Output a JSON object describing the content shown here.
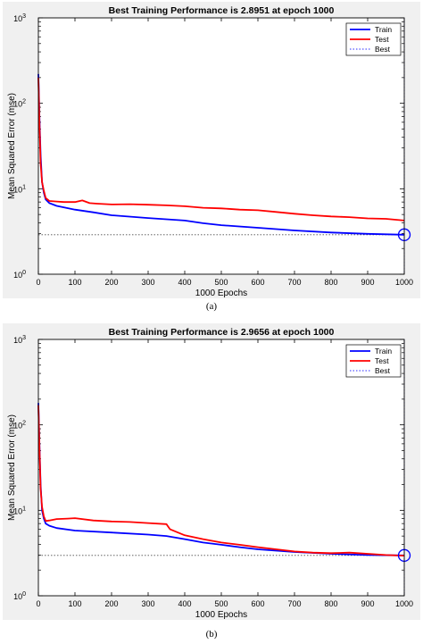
{
  "chart_data": [
    {
      "type": "line",
      "title": "Best Training Performance is 2.8951 at epoch 1000",
      "xlabel": "1000 Epochs",
      "ylabel": "Mean Squared Error  (mse)",
      "xlim": [
        0,
        1000
      ],
      "ylim": [
        1,
        1000
      ],
      "yscale": "log",
      "x_ticks": [
        "0",
        "100",
        "200",
        "300",
        "400",
        "500",
        "600",
        "700",
        "800",
        "900",
        "1000"
      ],
      "y_ticks": [
        {
          "base": "10",
          "exp": "0"
        },
        {
          "base": "10",
          "exp": "1"
        },
        {
          "base": "10",
          "exp": "2"
        },
        {
          "base": "10",
          "exp": "3"
        }
      ],
      "legend": [
        "Train",
        "Test",
        "Best"
      ],
      "legend_position": "top-right",
      "best": {
        "epoch": 1000,
        "value": 2.8951
      },
      "series": [
        {
          "name": "Train",
          "color": "#0000ff",
          "points": [
            [
              0,
              220
            ],
            [
              3,
              70
            ],
            [
              6,
              25
            ],
            [
              10,
              12
            ],
            [
              15,
              9
            ],
            [
              20,
              7.5
            ],
            [
              30,
              6.8
            ],
            [
              50,
              6.3
            ],
            [
              100,
              5.7
            ],
            [
              150,
              5.3
            ],
            [
              200,
              4.9
            ],
            [
              300,
              4.55
            ],
            [
              400,
              4.25
            ],
            [
              450,
              3.95
            ],
            [
              500,
              3.75
            ],
            [
              600,
              3.5
            ],
            [
              700,
              3.25
            ],
            [
              800,
              3.08
            ],
            [
              900,
              2.97
            ],
            [
              1000,
              2.8951
            ]
          ]
        },
        {
          "name": "Test",
          "color": "#ff0000",
          "points": [
            [
              0,
              200
            ],
            [
              3,
              60
            ],
            [
              6,
              20
            ],
            [
              10,
              12
            ],
            [
              15,
              9.5
            ],
            [
              20,
              7.8
            ],
            [
              30,
              7.2
            ],
            [
              50,
              7.1
            ],
            [
              70,
              7.0
            ],
            [
              100,
              7.0
            ],
            [
              120,
              7.3
            ],
            [
              140,
              6.8
            ],
            [
              160,
              6.7
            ],
            [
              200,
              6.55
            ],
            [
              250,
              6.6
            ],
            [
              300,
              6.5
            ],
            [
              350,
              6.4
            ],
            [
              400,
              6.25
            ],
            [
              450,
              6.0
            ],
            [
              500,
              5.9
            ],
            [
              550,
              5.7
            ],
            [
              600,
              5.6
            ],
            [
              650,
              5.35
            ],
            [
              700,
              5.1
            ],
            [
              750,
              4.9
            ],
            [
              800,
              4.75
            ],
            [
              850,
              4.65
            ],
            [
              900,
              4.5
            ],
            [
              950,
              4.45
            ],
            [
              1000,
              4.25
            ]
          ]
        }
      ]
    },
    {
      "type": "line",
      "title": "Best Training Performance is 2.9656 at epoch 1000",
      "xlabel": "1000 Epochs",
      "ylabel": "Mean Squared Error  (mse)",
      "xlim": [
        0,
        1000
      ],
      "ylim": [
        1,
        1000
      ],
      "yscale": "log",
      "x_ticks": [
        "0",
        "100",
        "200",
        "300",
        "400",
        "500",
        "600",
        "700",
        "800",
        "900",
        "1000"
      ],
      "y_ticks": [
        {
          "base": "10",
          "exp": "0"
        },
        {
          "base": "10",
          "exp": "1"
        },
        {
          "base": "10",
          "exp": "2"
        },
        {
          "base": "10",
          "exp": "3"
        }
      ],
      "legend": [
        "Train",
        "Test",
        "Best"
      ],
      "legend_position": "top-right",
      "best": {
        "epoch": 1000,
        "value": 2.9656
      },
      "series": [
        {
          "name": "Train",
          "color": "#0000ff",
          "points": [
            [
              0,
              180
            ],
            [
              3,
              60
            ],
            [
              6,
              20
            ],
            [
              10,
              10
            ],
            [
              15,
              8
            ],
            [
              20,
              7
            ],
            [
              30,
              6.6
            ],
            [
              50,
              6.2
            ],
            [
              100,
              5.8
            ],
            [
              200,
              5.5
            ],
            [
              300,
              5.2
            ],
            [
              350,
              5.0
            ],
            [
              400,
              4.6
            ],
            [
              450,
              4.2
            ],
            [
              500,
              3.95
            ],
            [
              550,
              3.7
            ],
            [
              600,
              3.5
            ],
            [
              700,
              3.25
            ],
            [
              800,
              3.1
            ],
            [
              900,
              3.0
            ],
            [
              1000,
              2.9656
            ]
          ]
        },
        {
          "name": "Test",
          "color": "#ff0000",
          "points": [
            [
              0,
              170
            ],
            [
              3,
              55
            ],
            [
              6,
              18
            ],
            [
              10,
              11
            ],
            [
              15,
              8.5
            ],
            [
              20,
              7.5
            ],
            [
              30,
              7.6
            ],
            [
              50,
              7.9
            ],
            [
              80,
              8.0
            ],
            [
              100,
              8.1
            ],
            [
              150,
              7.6
            ],
            [
              200,
              7.4
            ],
            [
              250,
              7.3
            ],
            [
              300,
              7.1
            ],
            [
              350,
              6.9
            ],
            [
              360,
              6.0
            ],
            [
              400,
              5.1
            ],
            [
              450,
              4.6
            ],
            [
              500,
              4.2
            ],
            [
              550,
              3.95
            ],
            [
              600,
              3.7
            ],
            [
              650,
              3.5
            ],
            [
              700,
              3.3
            ],
            [
              750,
              3.2
            ],
            [
              800,
              3.15
            ],
            [
              850,
              3.2
            ],
            [
              900,
              3.1
            ],
            [
              950,
              3.0
            ],
            [
              1000,
              2.95
            ]
          ]
        }
      ]
    }
  ],
  "captions": [
    "(a)",
    "(b)"
  ]
}
